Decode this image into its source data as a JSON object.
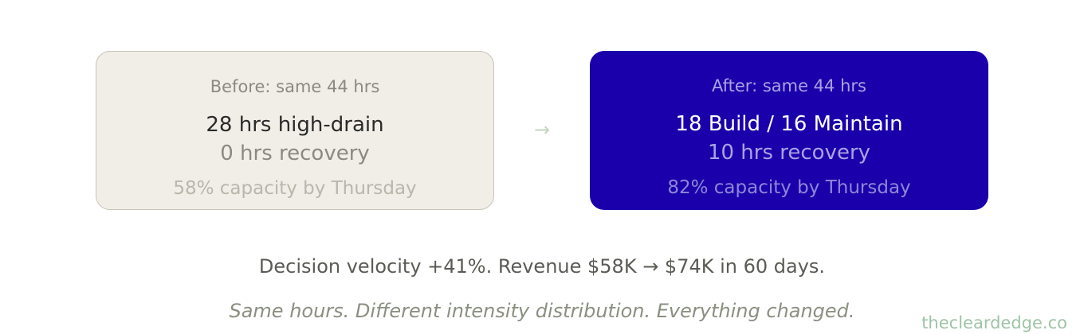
{
  "before": {
    "heading": "Before: same 44 hrs",
    "primary": "28 hrs high-drain",
    "secondary": "0 hrs recovery",
    "capacity": "58% capacity by Thursday"
  },
  "arrow": "→",
  "after": {
    "heading": "After: same 44 hrs",
    "primary": "18 Build / 16 Maintain",
    "secondary": "10 hrs recovery",
    "capacity": "82% capacity by Thursday"
  },
  "summary": "Decision velocity +41%. Revenue $58K → $74K in 60 days.",
  "tagline": "Same hours. Different intensity distribution. Everything changed.",
  "brand": "thecleardedge.co",
  "colors": {
    "after_card_background": "#1a00aa",
    "before_card_background": "#f1eee7",
    "brand": "#9ec4a6"
  }
}
